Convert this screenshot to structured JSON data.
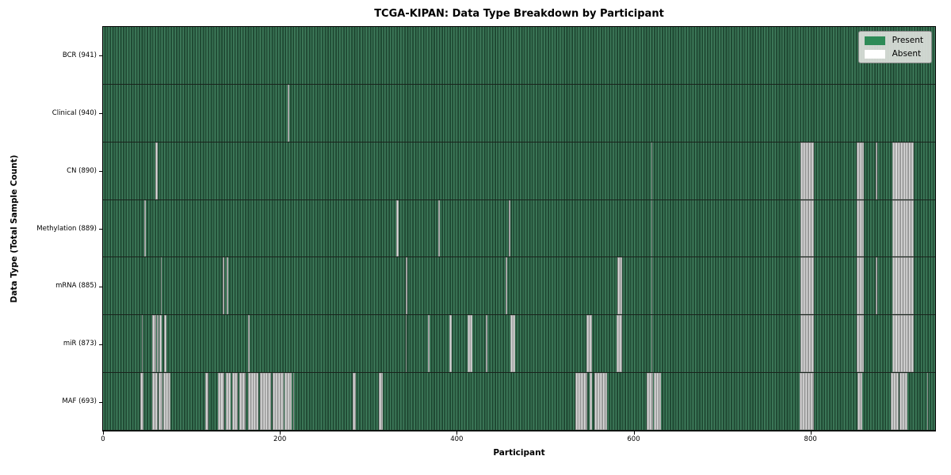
{
  "title": "TCGA-KIPAN: Data Type Breakdown by Participant",
  "legend": {
    "present_label": "Present",
    "absent_label": "Absent"
  },
  "colors": {
    "present": "#2e8b57",
    "present_dark": "#1d4530",
    "absent": "#ffffff",
    "absent_shade": "#9a9a9a",
    "legend_bg": "#dce0db",
    "spine": "#000000"
  },
  "chart_data": {
    "type": "heatmap",
    "title": "TCGA-KIPAN: Data Type Breakdown by Participant",
    "xlabel": "Participant",
    "ylabel": "Data Type (Total Sample Count)",
    "legend_labels": [
      "Present",
      "Absent"
    ],
    "legend_position": "upper right",
    "grid": false,
    "x_range": [
      0,
      941
    ],
    "x_ticks": [
      0,
      200,
      400,
      600,
      800
    ],
    "n_participants": 941,
    "rows": [
      {
        "data_type": "BCR",
        "label": "BCR (941)",
        "present_count": 941,
        "absent_segments": []
      },
      {
        "data_type": "Clinical",
        "label": "Clinical (940)",
        "present_count": 940,
        "absent_segments": [
          [
            209,
            211
          ]
        ]
      },
      {
        "data_type": "CN",
        "label": "CN (890)",
        "present_count": 890,
        "absent_segments": [
          [
            59,
            62
          ],
          [
            620,
            621
          ],
          [
            789,
            804
          ],
          [
            852,
            860
          ],
          [
            874,
            875
          ],
          [
            893,
            917
          ]
        ]
      },
      {
        "data_type": "Methylation",
        "label": "Methylation (889)",
        "present_count": 889,
        "absent_segments": [
          [
            47,
            48
          ],
          [
            332,
            334
          ],
          [
            379,
            381
          ],
          [
            459,
            461
          ],
          [
            620,
            621
          ],
          [
            789,
            804
          ],
          [
            852,
            860
          ],
          [
            893,
            917
          ]
        ]
      },
      {
        "data_type": "mRNA",
        "label": "mRNA (885)",
        "present_count": 885,
        "absent_segments": [
          [
            65,
            66
          ],
          [
            135,
            137
          ],
          [
            140,
            142
          ],
          [
            342,
            344
          ],
          [
            455,
            457
          ],
          [
            582,
            587
          ],
          [
            620,
            621
          ],
          [
            789,
            804
          ],
          [
            852,
            860
          ],
          [
            874,
            875
          ],
          [
            893,
            917
          ]
        ]
      },
      {
        "data_type": "miR",
        "label": "miR (873)",
        "present_count": 873,
        "absent_segments": [
          [
            44,
            45
          ],
          [
            56,
            60
          ],
          [
            61,
            63
          ],
          [
            64,
            66
          ],
          [
            69,
            72
          ],
          [
            164,
            166
          ],
          [
            342,
            343
          ],
          [
            367,
            369
          ],
          [
            392,
            394
          ],
          [
            412,
            418
          ],
          [
            433,
            435
          ],
          [
            461,
            466
          ],
          [
            547,
            553
          ],
          [
            581,
            587
          ],
          [
            620,
            621
          ],
          [
            789,
            804
          ],
          [
            852,
            860
          ],
          [
            893,
            917
          ]
        ]
      },
      {
        "data_type": "MAF",
        "label": "MAF (693)",
        "present_count": 693,
        "absent_segments": [
          [
            42,
            46
          ],
          [
            56,
            62
          ],
          [
            63,
            67
          ],
          [
            68,
            76
          ],
          [
            116,
            119
          ],
          [
            130,
            137
          ],
          [
            139,
            144
          ],
          [
            146,
            152
          ],
          [
            154,
            161
          ],
          [
            164,
            176
          ],
          [
            177,
            190
          ],
          [
            192,
            204
          ],
          [
            205,
            213
          ],
          [
            215,
            216
          ],
          [
            282,
            286
          ],
          [
            312,
            316
          ],
          [
            534,
            548
          ],
          [
            550,
            553
          ],
          [
            556,
            570
          ],
          [
            615,
            622
          ],
          [
            623,
            631
          ],
          [
            788,
            804
          ],
          [
            853,
            859
          ],
          [
            891,
            900
          ],
          [
            901,
            910
          ],
          [
            932,
            933
          ]
        ]
      }
    ]
  }
}
